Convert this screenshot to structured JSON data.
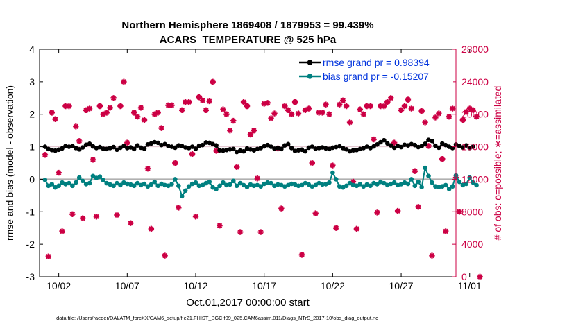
{
  "chart_data": {
    "type": "line",
    "title": "Northern Hemisphere 1869408 / 1879953 = 99.439%",
    "subtitle": "ACARS_TEMPERATURE @ 525 hPa",
    "xlabel": "Oct.01,2017 00:00:00 start",
    "ylabel_left": "rmse and bias (model - observation)",
    "ylabel_right": "# of obs: o=possible; ∗=assimilated",
    "footnote": "data file: /Users/raeder/DAI/ATM_forcXX/CAM6_setup/f.e21.FHIST_BGC.f09_025.CAM6assim.011/Diags_NTrS_2017-10/obs_diag_output.nc",
    "x_range_days": [
      0.6,
      31.0
    ],
    "x_tick_days": [
      2,
      7,
      12,
      17,
      22,
      27,
      32
    ],
    "x_tick_labels": [
      "10/02",
      "10/07",
      "10/12",
      "10/17",
      "10/22",
      "10/27",
      "11/01"
    ],
    "y_left_range": [
      -3,
      4
    ],
    "y_left_ticks": [
      -3,
      -2,
      -1,
      0,
      1,
      2,
      3,
      4
    ],
    "y_left_tick_labels": [
      "-3",
      "-2",
      "-1",
      "0",
      "1",
      "2",
      "3",
      "4"
    ],
    "y_right_range": [
      0,
      28000
    ],
    "y_right_ticks": [
      0,
      4000,
      8000,
      12000,
      16000,
      20000,
      24000,
      28000
    ],
    "y_right_tick_labels": [
      "0",
      "4000",
      "8000",
      "12000",
      "16000",
      "20000",
      "24000",
      "28000"
    ],
    "legend": [
      {
        "label": "rmse grand pr = 0.98394",
        "color": "#000000",
        "text_color": "#0033dd"
      },
      {
        "label": "bias grand pr = -0.15207",
        "color": "#008080",
        "text_color": "#0033dd"
      }
    ],
    "colors": {
      "rmse": "#000000",
      "bias": "#008080",
      "counts": "#cc0044",
      "zero_line": "#b0b0b0",
      "axis_right": "#cc0044"
    },
    "series": [
      {
        "name": "rmse",
        "axis": "left",
        "x_start": 1.0,
        "x_step": 0.25,
        "values": [
          1.0,
          0.93,
          0.9,
          0.88,
          0.91,
          0.95,
          1.02,
          1.0,
          1.02,
          0.96,
          0.92,
          0.98,
          1.06,
          1.09,
          1.01,
          0.96,
          0.99,
          0.94,
          0.93,
          0.96,
          0.99,
          0.91,
          0.97,
          1.02,
          0.96,
          0.98,
          0.93,
          1.04,
          0.97,
          0.94,
          1.07,
          1.1,
          1.14,
          1.12,
          1.05,
          1.08,
          1.02,
          1.0,
          0.97,
          1.04,
          1.02,
          0.98,
          0.96,
          1.0,
          0.94,
          1.03,
          1.05,
          1.13,
          1.12,
          1.08,
          1.04,
          0.89,
          0.88,
          0.9,
          0.92,
          0.93,
          0.84,
          0.88,
          0.86,
          0.95,
          0.92,
          0.89,
          0.93,
          0.96,
          1.01,
          1.05,
          1.0,
          0.94,
          0.96,
          0.93,
          1.04,
          1.08,
          0.96,
          0.87,
          0.89,
          0.91,
          0.86,
          0.97,
          1.0,
          0.94,
          0.96,
          0.98,
          0.95,
          0.93,
          0.97,
          0.99,
          1.01,
          0.96,
          0.92,
          0.86,
          0.89,
          0.9,
          0.93,
          0.96,
          1.0,
          0.96,
          1.01,
          1.07,
          1.14,
          1.2,
          1.1,
          1.04,
          0.97,
          1.02,
          0.99,
          1.06,
          1.04,
          1.08,
          1.05,
          0.99,
          1.02,
          1.09,
          1.21,
          1.18,
          1.03,
          0.97,
          1.1,
          1.05,
          1.0,
          0.96,
          1.07,
          1.02,
          0.98,
          1.04,
          0.96,
          1.0
        ]
      },
      {
        "name": "bias",
        "axis": "left",
        "x_start": 1.0,
        "x_step": 0.25,
        "values": [
          -0.02,
          -0.2,
          -0.15,
          -0.25,
          -0.2,
          -0.1,
          -0.15,
          -0.12,
          -0.2,
          -0.1,
          0.05,
          -0.05,
          -0.15,
          -0.12,
          0.1,
          0.04,
          0.08,
          -0.03,
          -0.12,
          -0.16,
          -0.2,
          -0.12,
          -0.18,
          -0.1,
          -0.14,
          -0.16,
          -0.2,
          -0.12,
          -0.18,
          -0.14,
          -0.22,
          -0.16,
          -0.08,
          -0.2,
          -0.14,
          -0.18,
          -0.2,
          -0.15,
          0.0,
          -0.2,
          -0.52,
          -0.35,
          -0.22,
          -0.14,
          -0.1,
          -0.2,
          -0.18,
          -0.12,
          -0.08,
          -0.25,
          -0.3,
          -0.2,
          -0.1,
          -0.18,
          -0.16,
          -0.05,
          -0.2,
          -0.12,
          -0.18,
          -0.24,
          -0.16,
          -0.2,
          -0.18,
          -0.22,
          -0.14,
          -0.1,
          -0.12,
          -0.2,
          -0.16,
          -0.18,
          -0.22,
          -0.18,
          -0.14,
          -0.16,
          -0.2,
          -0.18,
          -0.12,
          -0.16,
          -0.22,
          -0.18,
          -0.12,
          -0.16,
          -0.15,
          -0.1,
          0.2,
          0.0,
          -0.22,
          -0.25,
          -0.2,
          -0.12,
          -0.18,
          -0.2,
          -0.15,
          -0.22,
          -0.16,
          -0.2,
          -0.12,
          -0.15,
          -0.08,
          -0.12,
          -0.18,
          -0.14,
          -0.1,
          -0.18,
          -0.15,
          -0.1,
          -0.14,
          0.0,
          -0.2,
          -0.08,
          -0.24,
          0.35,
          0.1,
          -0.1,
          -0.22,
          -0.24,
          -0.22,
          -0.18,
          -0.3,
          -0.22,
          0.12,
          -0.08,
          -0.18,
          -0.14,
          0.05,
          -0.1,
          -0.18
        ]
      },
      {
        "name": "obs_assimilated",
        "axis": "right",
        "x_start": 1.0,
        "x_step": 0.25,
        "values": [
          15000,
          2500,
          20200,
          19400,
          12800,
          5600,
          21000,
          21000,
          7700,
          18500,
          16700,
          7200,
          20500,
          20700,
          14400,
          7400,
          21000,
          20000,
          20200,
          20800,
          22000,
          7600,
          21000,
          24000,
          16500,
          6600,
          20200,
          19700,
          20800,
          19300,
          13300,
          5900,
          20000,
          20200,
          18300,
          2600,
          21100,
          21100,
          14000,
          8500,
          20500,
          21500,
          21500,
          15100,
          7400,
          22100,
          21700,
          20500,
          21600,
          24000,
          15500,
          6300,
          20600,
          20000,
          18000,
          19200,
          13500,
          5500,
          21500,
          21000,
          17500,
          18000,
          12100,
          5500,
          21300,
          21400,
          19500,
          20100,
          15800,
          8400,
          21000,
          20500,
          20000,
          21500,
          20100,
          2700,
          20500,
          20700,
          14000,
          7800,
          20200,
          20200,
          21200,
          20000,
          13700,
          6000,
          21200,
          21700,
          21000,
          19000,
          11700,
          5900,
          20600,
          20000,
          21000,
          21000,
          16900,
          7900,
          21000,
          21000,
          21500,
          22000,
          16500,
          8100,
          20500,
          21000,
          21800,
          20700,
          13000,
          8600,
          20400,
          19000,
          16100,
          2600,
          19600,
          20100,
          14500,
          5600,
          19700,
          20700,
          12200,
          8000,
          19300,
          20300,
          20700,
          20500,
          19700,
          0
        ]
      }
    ]
  }
}
